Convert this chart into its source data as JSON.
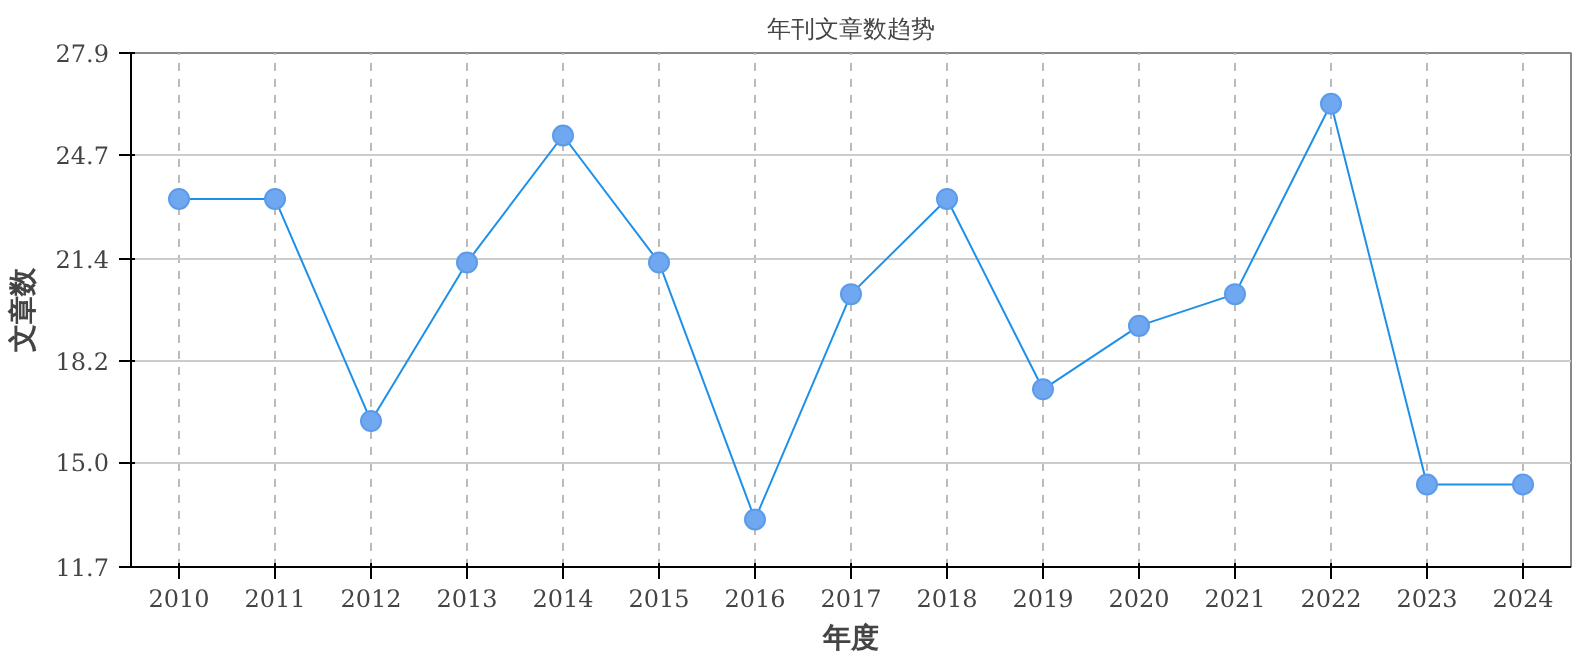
{
  "chart_data": {
    "type": "line",
    "title": "年刊文章数趋势",
    "xlabel": "年度",
    "ylabel": "文章数",
    "categories": [
      "2010",
      "2011",
      "2012",
      "2013",
      "2014",
      "2015",
      "2016",
      "2017",
      "2018",
      "2019",
      "2020",
      "2021",
      "2022",
      "2023",
      "2024"
    ],
    "series": [
      {
        "color": "#1e90e8",
        "values": [
          23.3,
          23.3,
          16.3,
          21.3,
          25.3,
          21.3,
          13.2,
          20.3,
          23.3,
          17.3,
          19.3,
          20.3,
          26.3,
          14.3,
          14.3
        ]
      }
    ],
    "ylim": [
      11.7,
      27.9
    ],
    "yticks": [
      11.7,
      {
        "value": 15,
        "label": "15.0"
      },
      18.2,
      21.4,
      24.7,
      27.9
    ],
    "grid": true,
    "marker": "circle",
    "line_style": "solid"
  }
}
